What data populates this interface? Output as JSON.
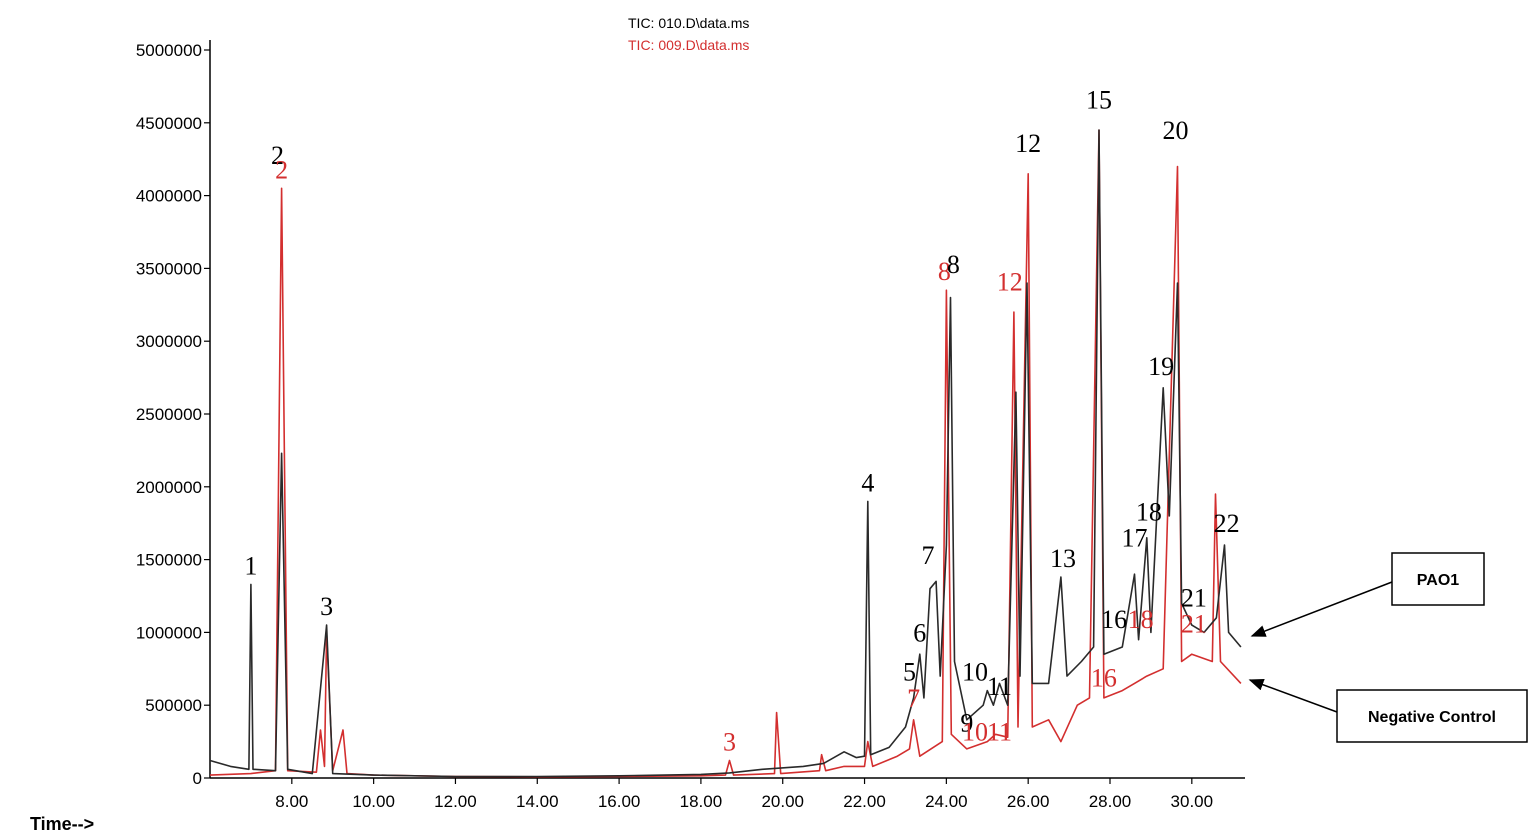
{
  "chart_data": {
    "type": "line",
    "xlabel": "Time-->",
    "ylabel": "",
    "xlim": [
      6.0,
      31.3
    ],
    "ylim": [
      0,
      5000000
    ],
    "x_ticks": [
      "8.00",
      "10.00",
      "12.00",
      "14.00",
      "16.00",
      "18.00",
      "20.00",
      "22.00",
      "24.00",
      "26.00",
      "28.00",
      "30.00"
    ],
    "y_ticks": [
      "0",
      "500000",
      "1000000",
      "1500000",
      "2000000",
      "2500000",
      "3000000",
      "3500000",
      "4000000",
      "4500000",
      "5000000"
    ],
    "legend": [
      "TIC: 010.D\\data.ms",
      "TIC: 009.D\\data.ms"
    ],
    "colors": {
      "black": "#2a2a2a",
      "red": "#d32f2f",
      "axis": "#000000"
    },
    "series": [
      {
        "name": "TIC: 010.D\\data.ms",
        "color": "#2a2a2a",
        "points": [
          [
            6.0,
            120000
          ],
          [
            6.5,
            80000
          ],
          [
            6.95,
            60000
          ],
          [
            7.0,
            1330000
          ],
          [
            7.05,
            60000
          ],
          [
            7.6,
            50000
          ],
          [
            7.75,
            2230000
          ],
          [
            7.9,
            60000
          ],
          [
            8.5,
            30000
          ],
          [
            8.85,
            1050000
          ],
          [
            9.0,
            30000
          ],
          [
            10.0,
            20000
          ],
          [
            12.0,
            10000
          ],
          [
            14.0,
            10000
          ],
          [
            16.0,
            15000
          ],
          [
            18.0,
            25000
          ],
          [
            18.7,
            35000
          ],
          [
            19.5,
            60000
          ],
          [
            20.5,
            80000
          ],
          [
            21.0,
            100000
          ],
          [
            21.5,
            180000
          ],
          [
            21.8,
            140000
          ],
          [
            22.0,
            150000
          ],
          [
            22.08,
            1900000
          ],
          [
            22.15,
            160000
          ],
          [
            22.6,
            210000
          ],
          [
            23.0,
            350000
          ],
          [
            23.2,
            550000
          ],
          [
            23.35,
            850000
          ],
          [
            23.45,
            550000
          ],
          [
            23.6,
            1300000
          ],
          [
            23.75,
            1350000
          ],
          [
            23.85,
            700000
          ],
          [
            24.0,
            1600000
          ],
          [
            24.1,
            3300000
          ],
          [
            24.2,
            800000
          ],
          [
            24.5,
            400000
          ],
          [
            24.9,
            500000
          ],
          [
            25.0,
            600000
          ],
          [
            25.15,
            500000
          ],
          [
            25.3,
            650000
          ],
          [
            25.5,
            500000
          ],
          [
            25.7,
            2650000
          ],
          [
            25.8,
            700000
          ],
          [
            25.97,
            3400000
          ],
          [
            26.1,
            650000
          ],
          [
            26.5,
            650000
          ],
          [
            26.8,
            1380000
          ],
          [
            26.95,
            700000
          ],
          [
            27.3,
            800000
          ],
          [
            27.6,
            900000
          ],
          [
            27.73,
            4450000
          ],
          [
            27.85,
            850000
          ],
          [
            28.3,
            900000
          ],
          [
            28.6,
            1400000
          ],
          [
            28.7,
            950000
          ],
          [
            28.9,
            1650000
          ],
          [
            29.0,
            1000000
          ],
          [
            29.3,
            2680000
          ],
          [
            29.45,
            1800000
          ],
          [
            29.65,
            3400000
          ],
          [
            29.75,
            1200000
          ],
          [
            30.0,
            1050000
          ],
          [
            30.3,
            1000000
          ],
          [
            30.6,
            1100000
          ],
          [
            30.8,
            1600000
          ],
          [
            30.9,
            1000000
          ],
          [
            31.2,
            900000
          ]
        ]
      },
      {
        "name": "TIC: 009.D\\data.ms",
        "color": "#d32f2f",
        "points": [
          [
            6.0,
            20000
          ],
          [
            7.0,
            30000
          ],
          [
            7.6,
            50000
          ],
          [
            7.75,
            4050000
          ],
          [
            7.9,
            50000
          ],
          [
            8.6,
            40000
          ],
          [
            8.7,
            330000
          ],
          [
            8.8,
            80000
          ],
          [
            8.85,
            1000000
          ],
          [
            9.0,
            50000
          ],
          [
            9.25,
            330000
          ],
          [
            9.35,
            30000
          ],
          [
            10.0,
            20000
          ],
          [
            12.0,
            10000
          ],
          [
            14.0,
            8000
          ],
          [
            16.0,
            10000
          ],
          [
            18.0,
            15000
          ],
          [
            18.6,
            20000
          ],
          [
            18.7,
            120000
          ],
          [
            18.8,
            20000
          ],
          [
            19.8,
            30000
          ],
          [
            19.85,
            450000
          ],
          [
            19.95,
            30000
          ],
          [
            20.9,
            50000
          ],
          [
            20.95,
            160000
          ],
          [
            21.05,
            50000
          ],
          [
            21.5,
            80000
          ],
          [
            22.0,
            80000
          ],
          [
            22.08,
            250000
          ],
          [
            22.2,
            80000
          ],
          [
            22.8,
            150000
          ],
          [
            23.1,
            200000
          ],
          [
            23.2,
            400000
          ],
          [
            23.35,
            150000
          ],
          [
            23.9,
            250000
          ],
          [
            24.0,
            3350000
          ],
          [
            24.12,
            300000
          ],
          [
            24.5,
            200000
          ],
          [
            25.0,
            250000
          ],
          [
            25.2,
            300000
          ],
          [
            25.5,
            280000
          ],
          [
            25.65,
            3200000
          ],
          [
            25.75,
            350000
          ],
          [
            26.0,
            4150000
          ],
          [
            26.1,
            350000
          ],
          [
            26.5,
            400000
          ],
          [
            26.8,
            250000
          ],
          [
            27.2,
            500000
          ],
          [
            27.5,
            550000
          ],
          [
            27.73,
            4450000
          ],
          [
            27.85,
            550000
          ],
          [
            28.3,
            600000
          ],
          [
            28.6,
            650000
          ],
          [
            28.9,
            700000
          ],
          [
            29.3,
            750000
          ],
          [
            29.65,
            4200000
          ],
          [
            29.75,
            800000
          ],
          [
            30.0,
            850000
          ],
          [
            30.5,
            800000
          ],
          [
            30.58,
            1950000
          ],
          [
            30.7,
            800000
          ],
          [
            31.2,
            650000
          ]
        ]
      }
    ],
    "annotations": [
      {
        "text": "1",
        "x": 7.0,
        "y": 1330000,
        "color": "#000000"
      },
      {
        "text": "2",
        "x": 7.65,
        "y": 4150000,
        "color": "#000000"
      },
      {
        "text": "2",
        "x": 7.75,
        "y": 4050000,
        "color": "#d32f2f"
      },
      {
        "text": "3",
        "x": 8.85,
        "y": 1050000,
        "color": "#000000"
      },
      {
        "text": "3",
        "x": 18.7,
        "y": 120000,
        "color": "#d32f2f"
      },
      {
        "text": "4",
        "x": 22.08,
        "y": 1900000,
        "color": "#000000"
      },
      {
        "text": "5",
        "x": 23.1,
        "y": 600000,
        "color": "#000000"
      },
      {
        "text": "6",
        "x": 23.35,
        "y": 870000,
        "color": "#000000"
      },
      {
        "text": "7",
        "x": 23.55,
        "y": 1400000,
        "color": "#000000"
      },
      {
        "text": "7",
        "x": 23.2,
        "y": 420000,
        "color": "#d32f2f"
      },
      {
        "text": "8",
        "x": 23.95,
        "y": 3350000,
        "color": "#d32f2f"
      },
      {
        "text": "8",
        "x": 24.17,
        "y": 3400000,
        "color": "#000000"
      },
      {
        "text": "9",
        "x": 24.5,
        "y": 250000,
        "color": "#000000"
      },
      {
        "text": "10",
        "x": 24.7,
        "y": 600000,
        "color": "#000000"
      },
      {
        "text": "10",
        "x": 24.7,
        "y": 190000,
        "color": "#d32f2f"
      },
      {
        "text": "11",
        "x": 25.3,
        "y": 500000,
        "color": "#000000"
      },
      {
        "text": "11",
        "x": 25.3,
        "y": 190000,
        "color": "#d32f2f"
      },
      {
        "text": "12",
        "x": 26.0,
        "y": 4230000,
        "color": "#000000"
      },
      {
        "text": "12",
        "x": 25.55,
        "y": 3280000,
        "color": "#d32f2f"
      },
      {
        "text": "13",
        "x": 26.85,
        "y": 1380000,
        "color": "#000000"
      },
      {
        "text": "15",
        "x": 27.73,
        "y": 4530000,
        "color": "#000000"
      },
      {
        "text": "16",
        "x": 28.1,
        "y": 960000,
        "color": "#000000"
      },
      {
        "text": "16",
        "x": 27.85,
        "y": 560000,
        "color": "#d32f2f"
      },
      {
        "text": "17",
        "x": 28.6,
        "y": 1520000,
        "color": "#000000"
      },
      {
        "text": "18",
        "x": 28.95,
        "y": 1700000,
        "color": "#000000"
      },
      {
        "text": "18",
        "x": 28.75,
        "y": 960000,
        "color": "#d32f2f"
      },
      {
        "text": "19",
        "x": 29.25,
        "y": 2700000,
        "color": "#000000"
      },
      {
        "text": "20",
        "x": 29.6,
        "y": 4320000,
        "color": "#000000"
      },
      {
        "text": "21",
        "x": 30.05,
        "y": 1110000,
        "color": "#000000"
      },
      {
        "text": "21",
        "x": 30.05,
        "y": 930000,
        "color": "#d32f2f"
      },
      {
        "text": "22",
        "x": 30.85,
        "y": 1620000,
        "color": "#000000"
      }
    ],
    "callouts": [
      {
        "text": "PAO1",
        "series": "TIC: 010.D\\data.ms"
      },
      {
        "text": "Negative Control",
        "series": "TIC: 009.D\\data.ms"
      }
    ]
  }
}
